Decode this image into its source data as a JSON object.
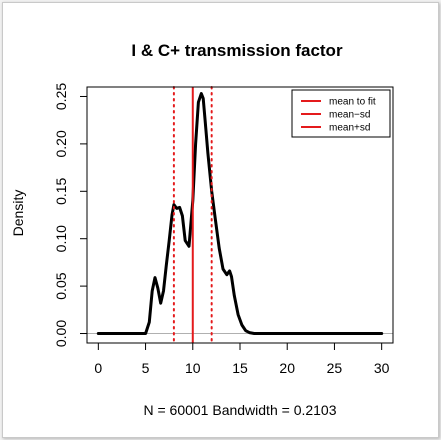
{
  "chart_data": {
    "type": "line",
    "title": "I & C+ transmission factor",
    "xlabel": "N = 60001   Bandwidth = 0.2103",
    "ylabel": "Density",
    "xlim": [
      -1.2,
      31.2
    ],
    "ylim": [
      -0.01,
      0.26
    ],
    "x_ticks": [
      "0",
      "5",
      "10",
      "15",
      "20",
      "25",
      "30"
    ],
    "y_ticks": [
      "0.00",
      "0.05",
      "0.10",
      "0.15",
      "0.20",
      "0.25"
    ],
    "grid": false,
    "series": [
      {
        "name": "density",
        "color": "#000000",
        "x": [
          0,
          5.0,
          5.4,
          5.7,
          6.0,
          6.3,
          6.6,
          6.9,
          7.2,
          7.5,
          7.8,
          8.0,
          8.3,
          8.6,
          8.9,
          9.2,
          9.6,
          10.0,
          10.3,
          10.6,
          10.9,
          11.1,
          11.3,
          11.6,
          12.0,
          12.4,
          12.8,
          13.2,
          13.6,
          13.9,
          14.1,
          14.4,
          14.8,
          15.2,
          15.6,
          16.0,
          16.5,
          30
        ],
        "y": [
          0.0,
          0.0,
          0.012,
          0.045,
          0.059,
          0.048,
          0.032,
          0.045,
          0.072,
          0.098,
          0.125,
          0.136,
          0.132,
          0.133,
          0.124,
          0.098,
          0.092,
          0.14,
          0.2,
          0.244,
          0.253,
          0.248,
          0.225,
          0.19,
          0.15,
          0.12,
          0.09,
          0.068,
          0.062,
          0.066,
          0.06,
          0.04,
          0.02,
          0.009,
          0.003,
          0.001,
          0.0,
          0.0
        ]
      }
    ],
    "vlines": [
      {
        "name": "mean to fit",
        "x": 10.0,
        "color": "#e41a1c",
        "style": "solid"
      },
      {
        "name": "mean−sd",
        "x": 8.0,
        "color": "#e41a1c",
        "style": "dotted"
      },
      {
        "name": "mean+sd",
        "x": 12.0,
        "color": "#e41a1c",
        "style": "dotted"
      }
    ],
    "hline": {
      "y": 0,
      "color": "#b0b0b0"
    },
    "legend": {
      "position": "top-right",
      "entries": [
        "mean to fit",
        "mean−sd",
        "mean+sd"
      ],
      "color": "#e41a1c"
    }
  }
}
